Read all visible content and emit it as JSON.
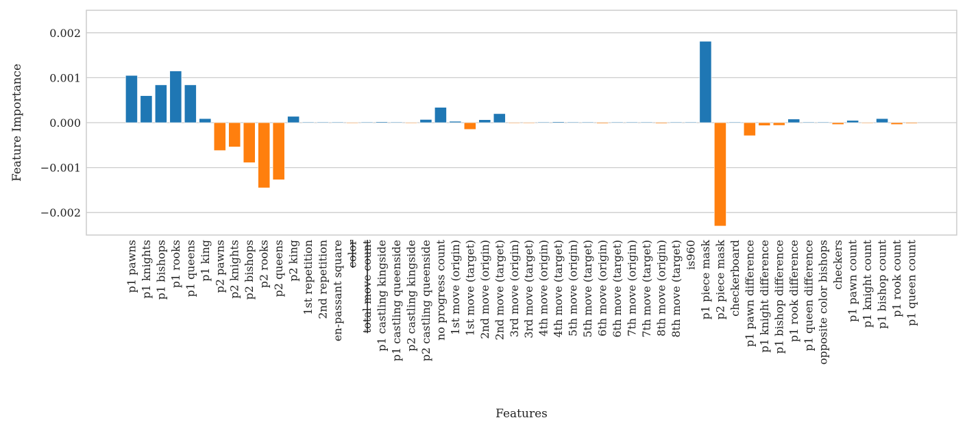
{
  "chart_data": {
    "type": "bar",
    "title": "",
    "xlabel": "Features",
    "ylabel": "Feature Importance",
    "ylim": [
      -0.0025,
      0.0025
    ],
    "yticks": [
      0.002,
      0.001,
      0.0,
      -0.001,
      -0.002
    ],
    "ytick_labels": [
      "0.002",
      "0.001",
      "0.000",
      "−0.001",
      "−0.002"
    ],
    "grid": true,
    "positive_color": "#1f77b4",
    "negative_color": "#ff7f0e",
    "struck_categories": [
      "color",
      "total move count"
    ],
    "categories": [
      "p1 pawns",
      "p1 knights",
      "p1 bishops",
      "p1 rooks",
      "p1 queens",
      "p1 king",
      "p2 pawns",
      "p2 knights",
      "p2 bishops",
      "p2 rooks",
      "p2 queens",
      "p2 king",
      "1st repetition",
      "2nd repetition",
      "en-passant square",
      "color",
      "total move count",
      "p1 castling kingside",
      "p1 castling queenside",
      "p2 castling kingside",
      "p2 castling queenside",
      "no progress count",
      "1st move (origin)",
      "1st move (target)",
      "2nd move (origin)",
      "2nd move (target)",
      "3rd move (origin)",
      "3rd move (target)",
      "4th move (origin)",
      "4th move (target)",
      "5th move (origin)",
      "5th move (target)",
      "6th move (origin)",
      "6th move (target)",
      "7th move (origin)",
      "7th move (target)",
      "8th move (origin)",
      "8th move (target)",
      "is960",
      "p1 piece mask",
      "p2 piece mask",
      "checkerboard",
      "p1 pawn difference",
      "p1 knight difference",
      "p1 bishop difference",
      "p1 rook difference",
      "p1 queen difference",
      "opposite color bishops",
      "checkers",
      "p1 pawn count",
      "p1 knight count",
      "p1 bishop count",
      "p1 rook count",
      "p1 queen count"
    ],
    "values": [
      0.00105,
      0.0006,
      0.00084,
      0.00115,
      0.00084,
      9e-05,
      -0.00062,
      -0.00054,
      -0.00089,
      -0.00145,
      -0.00127,
      0.00014,
      1e-05,
      3e-06,
      4e-06,
      -3e-06,
      2e-06,
      2e-05,
      1e-05,
      -1e-05,
      7e-05,
      0.00034,
      3e-05,
      -0.00015,
      6.5e-05,
      0.0002,
      -1e-05,
      -1e-05,
      3e-06,
      2e-05,
      5e-06,
      1e-05,
      -2e-05,
      3e-06,
      3e-06,
      1e-05,
      -2e-05,
      5e-06,
      3e-06,
      0.00181,
      -0.0023,
      3e-06,
      -0.00029,
      -6.5e-05,
      -6e-05,
      8e-05,
      1e-05,
      5e-06,
      -4e-05,
      5e-05,
      -1e-05,
      9e-05,
      -4e-05,
      -2e-05
    ]
  }
}
